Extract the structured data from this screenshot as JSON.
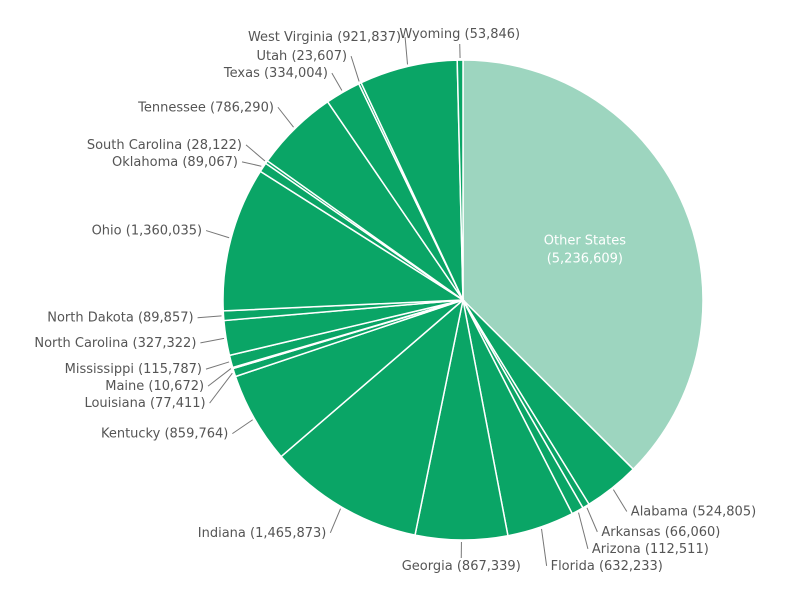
{
  "chart_data": {
    "type": "pie",
    "categories": [
      "Other States",
      "Alabama",
      "Arkansas",
      "Arizona",
      "Florida",
      "Georgia",
      "Indiana",
      "Kentucky",
      "Louisiana",
      "Maine",
      "Mississippi",
      "North Carolina",
      "North Dakota",
      "Ohio",
      "Oklahoma",
      "South Carolina",
      "Tennessee",
      "Texas",
      "Utah",
      "West Virginia",
      "Wyoming"
    ],
    "values": [
      5236609,
      524805,
      66060,
      112511,
      632233,
      867339,
      1465873,
      859764,
      77411,
      10672,
      115787,
      327322,
      89857,
      1360035,
      89067,
      28122,
      786290,
      334004,
      23607,
      921837,
      53846
    ],
    "value_labels": [
      "(5,236,609)",
      "(524,805)",
      "(66,060)",
      "(112,511)",
      "(632,233)",
      "(867,339)",
      "(1,465,873)",
      "(859,764)",
      "(77,411)",
      "(10,672)",
      "(115,787)",
      "(327,322)",
      "(89,857)",
      "(1,360,035)",
      "(89,067)",
      "(28,122)",
      "(786,290)",
      "(334,004)",
      "(23,607)",
      "(921,837)",
      "(53,846)"
    ],
    "colors": [
      "#9dd5bf",
      "#0aa566",
      "#0aa566",
      "#0aa566",
      "#0aa566",
      "#0aa566",
      "#0aa566",
      "#0aa566",
      "#0aa566",
      "#0aa566",
      "#0aa566",
      "#0aa566",
      "#0aa566",
      "#0aa566",
      "#0aa566",
      "#0aa566",
      "#0aa566",
      "#0aa566",
      "#0aa566",
      "#0aa566",
      "#0aa566"
    ]
  }
}
